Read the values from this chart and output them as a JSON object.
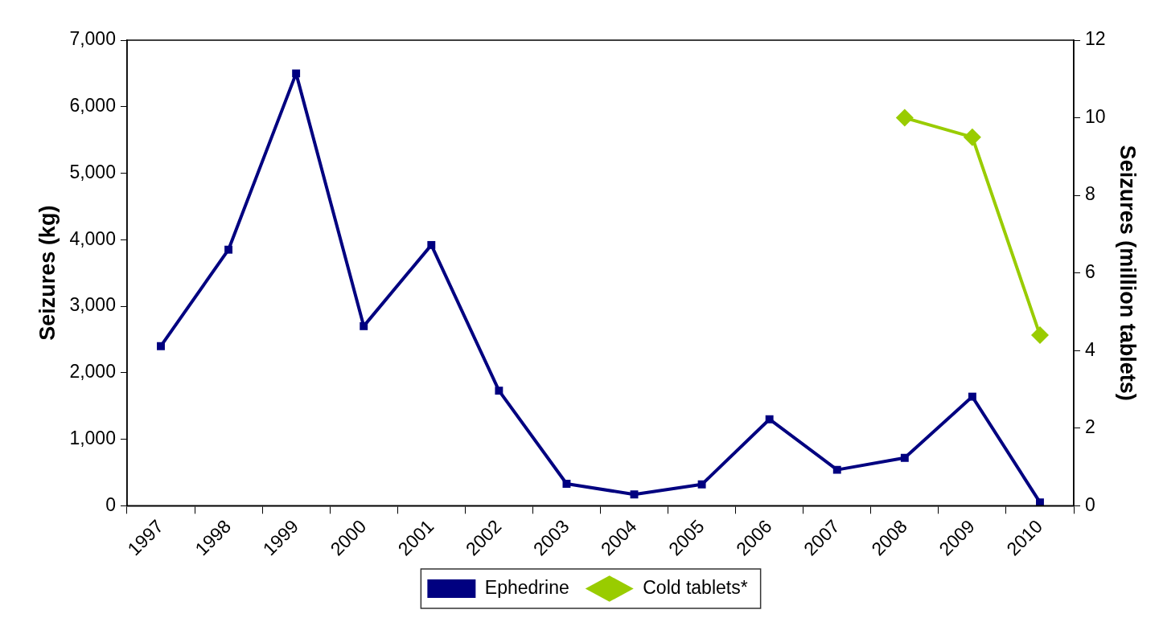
{
  "chart_data": {
    "type": "line",
    "ylabel": "Seizures (kg)",
    "y2label": "Seizures (million tablets)",
    "categories": [
      "1997",
      "1998",
      "1999",
      "2000",
      "2001",
      "2002",
      "2003",
      "2004",
      "2005",
      "2006",
      "2007",
      "2008",
      "2009",
      "2010"
    ],
    "series": [
      {
        "name": "Ephedrine",
        "color": "#000080",
        "marker": "square",
        "values": [
          2400,
          3850,
          6500,
          2700,
          3920,
          1730,
          330,
          170,
          320,
          1300,
          540,
          720,
          1640,
          50
        ]
      },
      {
        "name": "Cold tablets*",
        "color": "#99cc00",
        "marker": "diamond",
        "axis": "y2",
        "values": [
          null,
          null,
          null,
          null,
          null,
          null,
          null,
          null,
          null,
          null,
          null,
          10,
          9.5,
          4.4
        ]
      }
    ],
    "ylim": [
      0,
      7000
    ],
    "yticks": [
      {
        "value": 0,
        "label": "0"
      },
      {
        "value": 1000,
        "label": "1,000"
      },
      {
        "value": 2000,
        "label": "2,000"
      },
      {
        "value": 3000,
        "label": "3,000"
      },
      {
        "value": 4000,
        "label": "4,000"
      },
      {
        "value": 5000,
        "label": "5,000"
      },
      {
        "value": 6000,
        "label": "6,000"
      },
      {
        "value": 7000,
        "label": "7,000"
      }
    ],
    "y2lim": [
      0,
      12
    ],
    "y2ticks": [
      0,
      2,
      4,
      6,
      8,
      10,
      12
    ],
    "grid": false,
    "legend": "bottom",
    "line_style": "solid"
  }
}
